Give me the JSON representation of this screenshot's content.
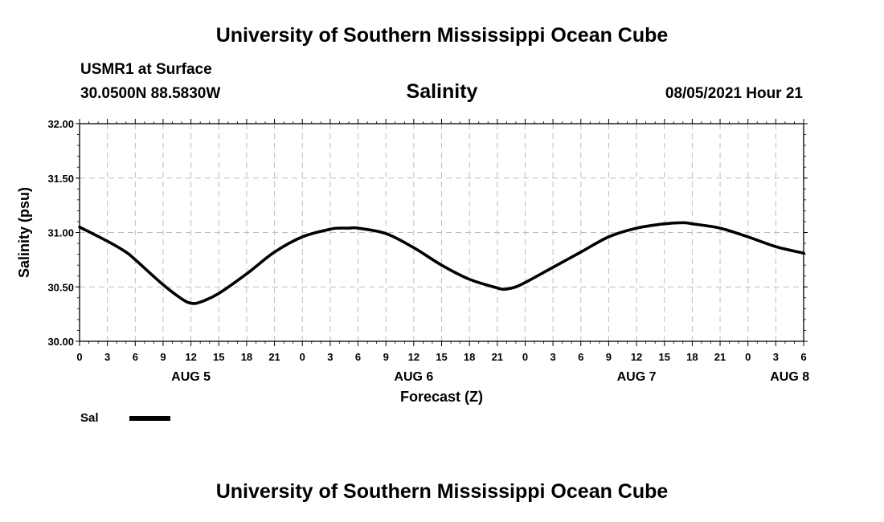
{
  "header": {
    "org_title": "University of Southern Mississippi Ocean Cube",
    "station": "USMR1 at Surface",
    "coords": "30.0500N  88.5830W",
    "variable": "Salinity",
    "datetime": "08/05/2021 Hour 21"
  },
  "footer": {
    "org_title": "University of Southern Mississippi Ocean Cube"
  },
  "chart_data": {
    "type": "line",
    "title": "Salinity",
    "xlabel": "Forecast (Z)",
    "ylabel": "Salinity (psu)",
    "ylim": [
      30.0,
      32.0
    ],
    "yticks": [
      "30.00",
      "30.50",
      "31.00",
      "31.50",
      "32.00"
    ],
    "xlim": [
      0,
      78
    ],
    "x_tick_step_hours": 3,
    "x_tick_labels": [
      "0",
      "3",
      "6",
      "9",
      "12",
      "15",
      "18",
      "21",
      "0",
      "3",
      "6",
      "9",
      "12",
      "15",
      "18",
      "21",
      "0",
      "3",
      "6",
      "9",
      "12",
      "15",
      "18",
      "21",
      "0",
      "3",
      "6"
    ],
    "day_labels": [
      {
        "label": "AUG 5",
        "hour": 12
      },
      {
        "label": "AUG 6",
        "hour": 36
      },
      {
        "label": "AUG 7",
        "hour": 60
      },
      {
        "label": "AUG 8",
        "hour": 76.5
      }
    ],
    "grid": true,
    "legend": [
      {
        "name": "Sal",
        "color": "#000000"
      }
    ],
    "series": [
      {
        "name": "Sal",
        "color": "#000000",
        "x": [
          0,
          3,
          5,
          6,
          9,
          11,
          12,
          13,
          15,
          18,
          21,
          24,
          27,
          28,
          29,
          30,
          33,
          36,
          39,
          42,
          45,
          45.5,
          46,
          47,
          48,
          51,
          54,
          57,
          60,
          63,
          65,
          66,
          69,
          72,
          75,
          78
        ],
        "y": [
          31.05,
          30.92,
          30.82,
          30.75,
          30.52,
          30.39,
          30.35,
          30.36,
          30.44,
          30.62,
          30.82,
          30.96,
          31.03,
          31.04,
          31.04,
          31.04,
          30.99,
          30.86,
          30.7,
          30.57,
          30.49,
          30.48,
          30.48,
          30.5,
          30.54,
          30.68,
          30.82,
          30.96,
          31.04,
          31.08,
          31.09,
          31.08,
          31.04,
          30.96,
          30.87,
          30.81
        ]
      }
    ]
  }
}
